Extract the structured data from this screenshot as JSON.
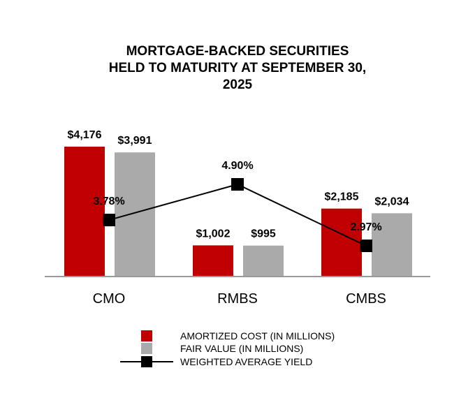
{
  "chart_data": {
    "type": "bar",
    "title_lines": [
      "MORTGAGE-BACKED SECURITIES",
      "HELD TO MATURITY AT SEPTEMBER 30,",
      "2025"
    ],
    "categories": [
      "CMO",
      "RMBS",
      "CMBS"
    ],
    "series": [
      {
        "name": "AMORTIZED COST (IN MILLIONS)",
        "type": "bar",
        "color": "#c00000",
        "values": [
          4176,
          1002,
          2185
        ],
        "labels": [
          "$4,176",
          "$1,002",
          "$2,185"
        ]
      },
      {
        "name": "FAIR VALUE (IN MILLIONS)",
        "type": "bar",
        "color": "#aaaaaa",
        "values": [
          3991,
          995,
          2034
        ],
        "labels": [
          "$3,991",
          "$995",
          "$2,034"
        ]
      },
      {
        "name": "WEIGHTED AVERAGE YIELD",
        "type": "line",
        "color": "#000000",
        "values": [
          3.78,
          4.9,
          2.97
        ],
        "labels": [
          "3.78%",
          "4.90%",
          "2.97%"
        ]
      }
    ],
    "bar_axis_range": [
      0,
      4500
    ],
    "yield_axis_range": [
      2.0,
      6.0
    ],
    "legend_position": "bottom",
    "grid": false
  }
}
